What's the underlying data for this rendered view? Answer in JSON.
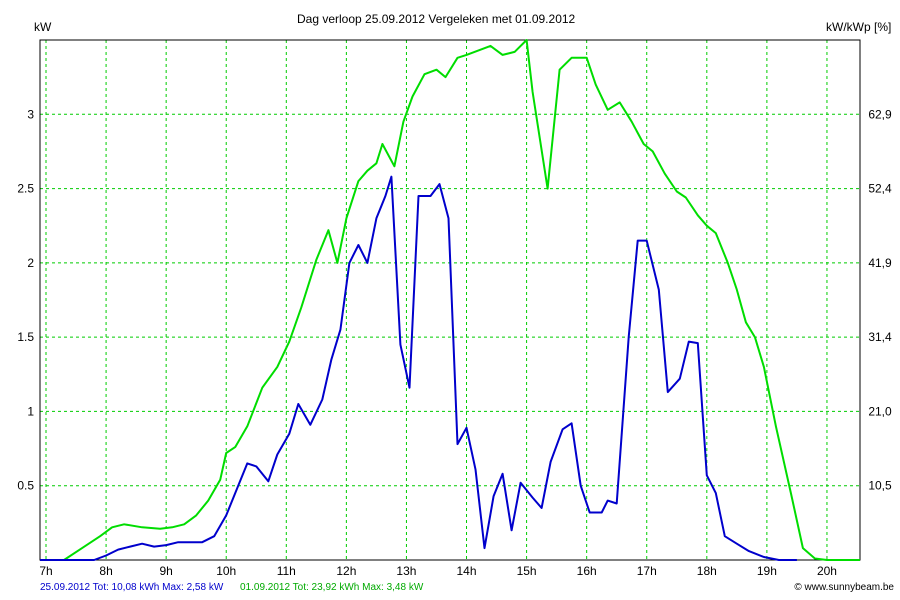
{
  "chart_data": {
    "type": "line",
    "title": "Dag  verloop 25.09.2012   Vergeleken met 01.09.2012",
    "ylabel_left": "kW",
    "ylabel_right": "kW/kWp [%]",
    "x_ticks": [
      "7h",
      "8h",
      "9h",
      "10h",
      "11h",
      "12h",
      "13h",
      "14h",
      "15h",
      "16h",
      "17h",
      "18h",
      "19h",
      "20h"
    ],
    "y_ticks_left": [
      "0.5",
      "1",
      "1.5",
      "2",
      "2.5",
      "3"
    ],
    "y_ticks_right": [
      "10,5",
      "21,0",
      "31,4",
      "41,9",
      "52,4",
      "62,9"
    ],
    "xlim": [
      6.9,
      20.55
    ],
    "ylim": [
      0,
      3.5
    ],
    "grid": true,
    "series": [
      {
        "name": "25.09.2012",
        "color": "#0000cc",
        "x": [
          6.9,
          7.5,
          7.8,
          8.0,
          8.2,
          8.4,
          8.6,
          8.8,
          9.0,
          9.2,
          9.4,
          9.6,
          9.8,
          10.0,
          10.2,
          10.35,
          10.5,
          10.7,
          10.85,
          11.05,
          11.2,
          11.4,
          11.6,
          11.75,
          11.9,
          12.05,
          12.2,
          12.35,
          12.5,
          12.65,
          12.75,
          12.9,
          13.05,
          13.2,
          13.4,
          13.55,
          13.7,
          13.85,
          14.0,
          14.15,
          14.3,
          14.45,
          14.6,
          14.75,
          14.9,
          15.1,
          15.25,
          15.4,
          15.6,
          15.75,
          15.9,
          16.05,
          16.25,
          16.35,
          16.5,
          16.7,
          16.85,
          17.0,
          17.2,
          17.35,
          17.55,
          17.7,
          17.85,
          18.0,
          18.15,
          18.3,
          18.5,
          18.7,
          18.95,
          19.2,
          19.5
        ],
        "y": [
          0,
          0,
          0,
          0.03,
          0.07,
          0.09,
          0.11,
          0.09,
          0.1,
          0.12,
          0.12,
          0.12,
          0.16,
          0.3,
          0.5,
          0.65,
          0.63,
          0.53,
          0.71,
          0.85,
          1.05,
          0.91,
          1.08,
          1.35,
          1.55,
          2.0,
          2.12,
          2.0,
          2.3,
          2.45,
          2.58,
          1.45,
          1.16,
          2.45,
          2.45,
          2.53,
          2.3,
          0.78,
          0.89,
          0.61,
          0.08,
          0.43,
          0.58,
          0.2,
          0.52,
          0.42,
          0.35,
          0.66,
          0.88,
          0.92,
          0.5,
          0.32,
          0.32,
          0.4,
          0.38,
          1.5,
          2.15,
          2.15,
          1.82,
          1.13,
          1.22,
          1.47,
          1.46,
          0.57,
          0.45,
          0.16,
          0.11,
          0.06,
          0.02,
          0,
          0
        ]
      },
      {
        "name": "01.09.2012",
        "color": "#00dd00",
        "x": [
          6.9,
          7.3,
          7.6,
          7.9,
          8.1,
          8.3,
          8.6,
          8.9,
          9.1,
          9.3,
          9.5,
          9.7,
          9.9,
          10.0,
          10.15,
          10.35,
          10.6,
          10.85,
          11.05,
          11.25,
          11.5,
          11.7,
          11.85,
          12.0,
          12.2,
          12.35,
          12.5,
          12.6,
          12.8,
          12.95,
          13.1,
          13.3,
          13.5,
          13.65,
          13.85,
          14.0,
          14.2,
          14.4,
          14.6,
          14.8,
          15.0,
          15.1,
          15.35,
          15.55,
          15.75,
          16.0,
          16.15,
          16.35,
          16.55,
          16.75,
          16.95,
          17.1,
          17.3,
          17.5,
          17.65,
          17.85,
          18.0,
          18.15,
          18.35,
          18.5,
          18.65,
          18.8,
          18.95,
          19.15,
          19.4,
          19.6,
          19.8,
          20.0,
          20.55
        ],
        "y": [
          0,
          0,
          0.08,
          0.16,
          0.22,
          0.24,
          0.22,
          0.21,
          0.22,
          0.24,
          0.3,
          0.4,
          0.54,
          0.72,
          0.76,
          0.9,
          1.16,
          1.3,
          1.47,
          1.7,
          2.02,
          2.22,
          2.0,
          2.3,
          2.55,
          2.62,
          2.67,
          2.8,
          2.65,
          2.95,
          3.12,
          3.27,
          3.3,
          3.25,
          3.38,
          3.4,
          3.43,
          3.46,
          3.4,
          3.42,
          3.5,
          3.15,
          2.5,
          3.3,
          3.38,
          3.38,
          3.2,
          3.03,
          3.08,
          2.95,
          2.8,
          2.75,
          2.6,
          2.48,
          2.44,
          2.32,
          2.25,
          2.2,
          2.0,
          1.82,
          1.6,
          1.5,
          1.3,
          0.9,
          0.45,
          0.08,
          0.01,
          0,
          0
        ]
      }
    ],
    "footer": {
      "series1_text": "25.09.2012 Tot: 10,08 kWh Max: 2,58 kW",
      "series2_text": "01.09.2012 Tot: 23,92 kWh Max: 3,48 kW",
      "credit": "© www.sunnybeam.be"
    }
  }
}
